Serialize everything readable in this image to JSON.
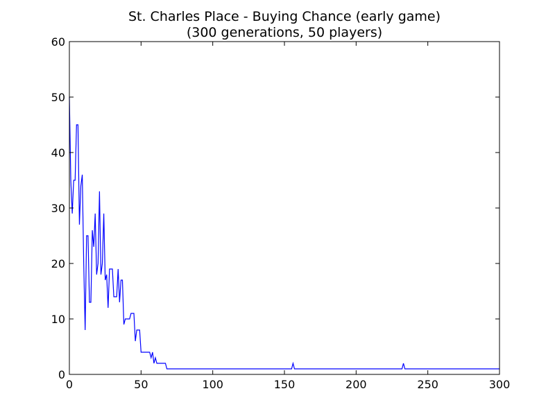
{
  "chart_data": {
    "type": "line",
    "title": "St. Charles Place - Buying Chance (early game)",
    "subtitle": "(300 generations, 50 players)",
    "xlabel": "",
    "ylabel": "",
    "xlim": [
      0,
      300
    ],
    "ylim": [
      0,
      60
    ],
    "xticks": [
      0,
      50,
      100,
      150,
      200,
      250,
      300
    ],
    "yticks": [
      0,
      10,
      20,
      30,
      40,
      50,
      60
    ],
    "grid": false,
    "legend": false,
    "colors": {
      "line": "#0000ff",
      "axes": "#000000",
      "background": "#ffffff"
    },
    "series": [
      {
        "points": [
          [
            0,
            50
          ],
          [
            1,
            35
          ],
          [
            2,
            29
          ],
          [
            3,
            35
          ],
          [
            4,
            35
          ],
          [
            5,
            45
          ],
          [
            6,
            45
          ],
          [
            7,
            27
          ],
          [
            8,
            34
          ],
          [
            9,
            36
          ],
          [
            10,
            20
          ],
          [
            11,
            8
          ],
          [
            12,
            25
          ],
          [
            13,
            25
          ],
          [
            14,
            13
          ],
          [
            15,
            13
          ],
          [
            16,
            26
          ],
          [
            17,
            23
          ],
          [
            18,
            29
          ],
          [
            19,
            18
          ],
          [
            20,
            20
          ],
          [
            21,
            33
          ],
          [
            22,
            18
          ],
          [
            23,
            20
          ],
          [
            24,
            29
          ],
          [
            25,
            17
          ],
          [
            26,
            18
          ],
          [
            27,
            12
          ],
          [
            28,
            19
          ],
          [
            29,
            19
          ],
          [
            30,
            19
          ],
          [
            31,
            14
          ],
          [
            32,
            14
          ],
          [
            33,
            14
          ],
          [
            34,
            19
          ],
          [
            35,
            13
          ],
          [
            36,
            17
          ],
          [
            37,
            17
          ],
          [
            38,
            9
          ],
          [
            39,
            10
          ],
          [
            40,
            10
          ],
          [
            41,
            10
          ],
          [
            42,
            10
          ],
          [
            43,
            11
          ],
          [
            44,
            11
          ],
          [
            45,
            11
          ],
          [
            46,
            6
          ],
          [
            47,
            8
          ],
          [
            48,
            8
          ],
          [
            49,
            8
          ],
          [
            50,
            4
          ],
          [
            51,
            4
          ],
          [
            52,
            4
          ],
          [
            53,
            4
          ],
          [
            54,
            4
          ],
          [
            55,
            4
          ],
          [
            56,
            4
          ],
          [
            57,
            3
          ],
          [
            58,
            4
          ],
          [
            59,
            2
          ],
          [
            60,
            3
          ],
          [
            61,
            2
          ],
          [
            62,
            2
          ],
          [
            63,
            2
          ],
          [
            64,
            2
          ],
          [
            65,
            2
          ],
          [
            66,
            2
          ],
          [
            67,
            2
          ],
          [
            68,
            1
          ],
          [
            155,
            1
          ],
          [
            156,
            2
          ],
          [
            157,
            1
          ],
          [
            232,
            1
          ],
          [
            233,
            2
          ],
          [
            234,
            1
          ],
          [
            300,
            1
          ]
        ]
      }
    ]
  }
}
